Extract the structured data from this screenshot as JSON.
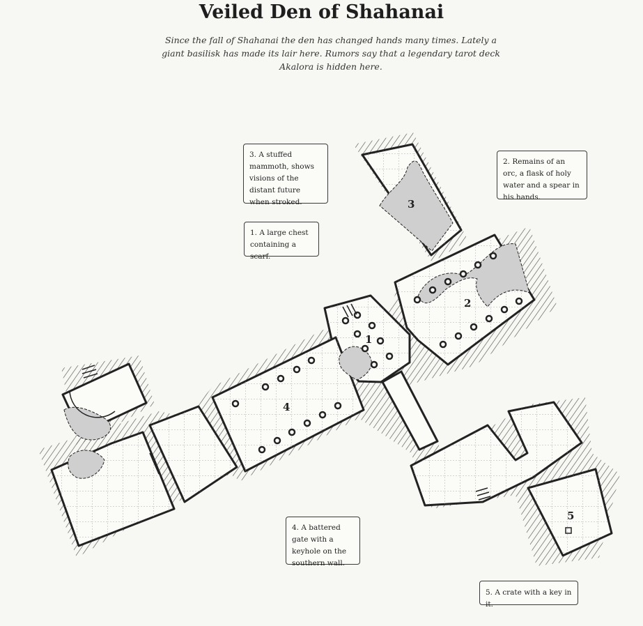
{
  "title": "Veiled Den of Shahanai",
  "subtitle": "Since the fall of Shahanai the den has changed hands many times. Lately a giant basilisk has made its lair here. Rumors say that a legendary tarot deck Akalora is hidden here.",
  "rooms": [
    {
      "label": "1"
    },
    {
      "label": "2"
    },
    {
      "label": "3"
    },
    {
      "label": "4"
    },
    {
      "label": "5"
    }
  ],
  "notes": [
    {
      "text": "1. A large chest containing a scarf."
    },
    {
      "text": "2. Remains of an orc, a flask of holy water and a spear in his hands."
    },
    {
      "text": "3. A stuffed mammoth, shows visions of the distant future when stroked."
    },
    {
      "text": "4. A battered gate with a keyhole on the southern wall."
    },
    {
      "text": "5. A crate with a key in it."
    }
  ],
  "colors": {
    "background": "#f7f7f3",
    "floor": "#fbfbf8",
    "wall": "#222222",
    "water": "#cfcfcf",
    "hatching": "#555555"
  }
}
